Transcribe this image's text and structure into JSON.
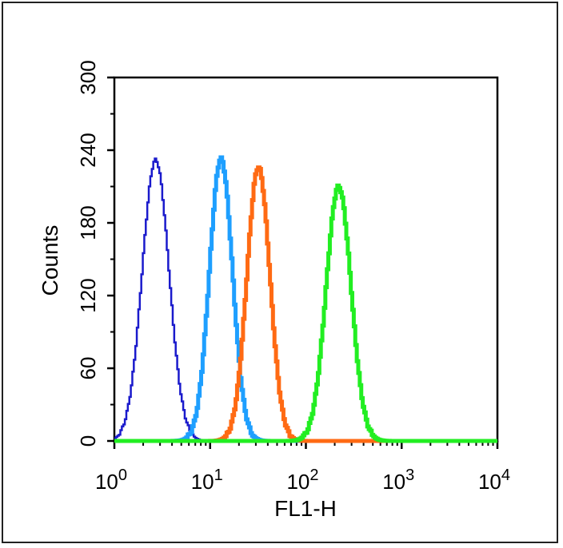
{
  "chart_data": {
    "type": "line",
    "title": "",
    "xlabel": "FL1-H",
    "ylabel": "Counts",
    "x_scale": "log",
    "xlim": [
      1,
      10000
    ],
    "ylim": [
      0,
      300
    ],
    "x_ticks": [
      {
        "base": "10",
        "exp": "0",
        "value": 1
      },
      {
        "base": "10",
        "exp": "1",
        "value": 10
      },
      {
        "base": "10",
        "exp": "2",
        "value": 100
      },
      {
        "base": "10",
        "exp": "3",
        "value": 1000
      },
      {
        "base": "10",
        "exp": "4",
        "value": 10000
      }
    ],
    "y_ticks": [
      "0",
      "60",
      "120",
      "180",
      "240",
      "300"
    ],
    "grid": false,
    "legend": "none",
    "series": [
      {
        "color": "#1a1acc",
        "stroke_style": "thin",
        "peak_x": 2.7,
        "peak_count": 232,
        "log_sigma": 0.14,
        "x": [
          1.0,
          1.3,
          1.6,
          2.0,
          2.4,
          2.7,
          3.0,
          3.5,
          4.2,
          5.0,
          6.0,
          8.0
        ],
        "y": [
          8,
          20,
          60,
          150,
          215,
          232,
          215,
          150,
          70,
          25,
          10,
          2
        ]
      },
      {
        "color": "#1e9fff",
        "stroke_style": "thick",
        "peak_x": 13,
        "peak_count": 233,
        "log_sigma": 0.12,
        "x": [
          5.0,
          7.0,
          9.0,
          11.0,
          13.0,
          15.5,
          19.0,
          24.0,
          30.0,
          40.0
        ],
        "y": [
          3,
          35,
          130,
          215,
          233,
          210,
          130,
          50,
          12,
          2
        ]
      },
      {
        "color": "#ff6a13",
        "stroke_style": "thick",
        "peak_x": 32,
        "peak_count": 226,
        "log_sigma": 0.12,
        "x": [
          12.0,
          17.0,
          22.0,
          27.0,
          32.0,
          38.0,
          46.0,
          58.0,
          75.0,
          100.0
        ],
        "y": [
          3,
          35,
          130,
          210,
          226,
          205,
          130,
          50,
          12,
          2
        ]
      },
      {
        "color": "#22ee22",
        "stroke_style": "thick",
        "peak_x": 220,
        "peak_count": 210,
        "log_sigma": 0.13,
        "x": [
          80.0,
          110.0,
          150.0,
          190.0,
          220.0,
          260.0,
          320.0,
          420.0,
          550.0,
          700.0
        ],
        "y": [
          5,
          40,
          140,
          200,
          210,
          195,
          130,
          50,
          12,
          2
        ]
      }
    ]
  }
}
